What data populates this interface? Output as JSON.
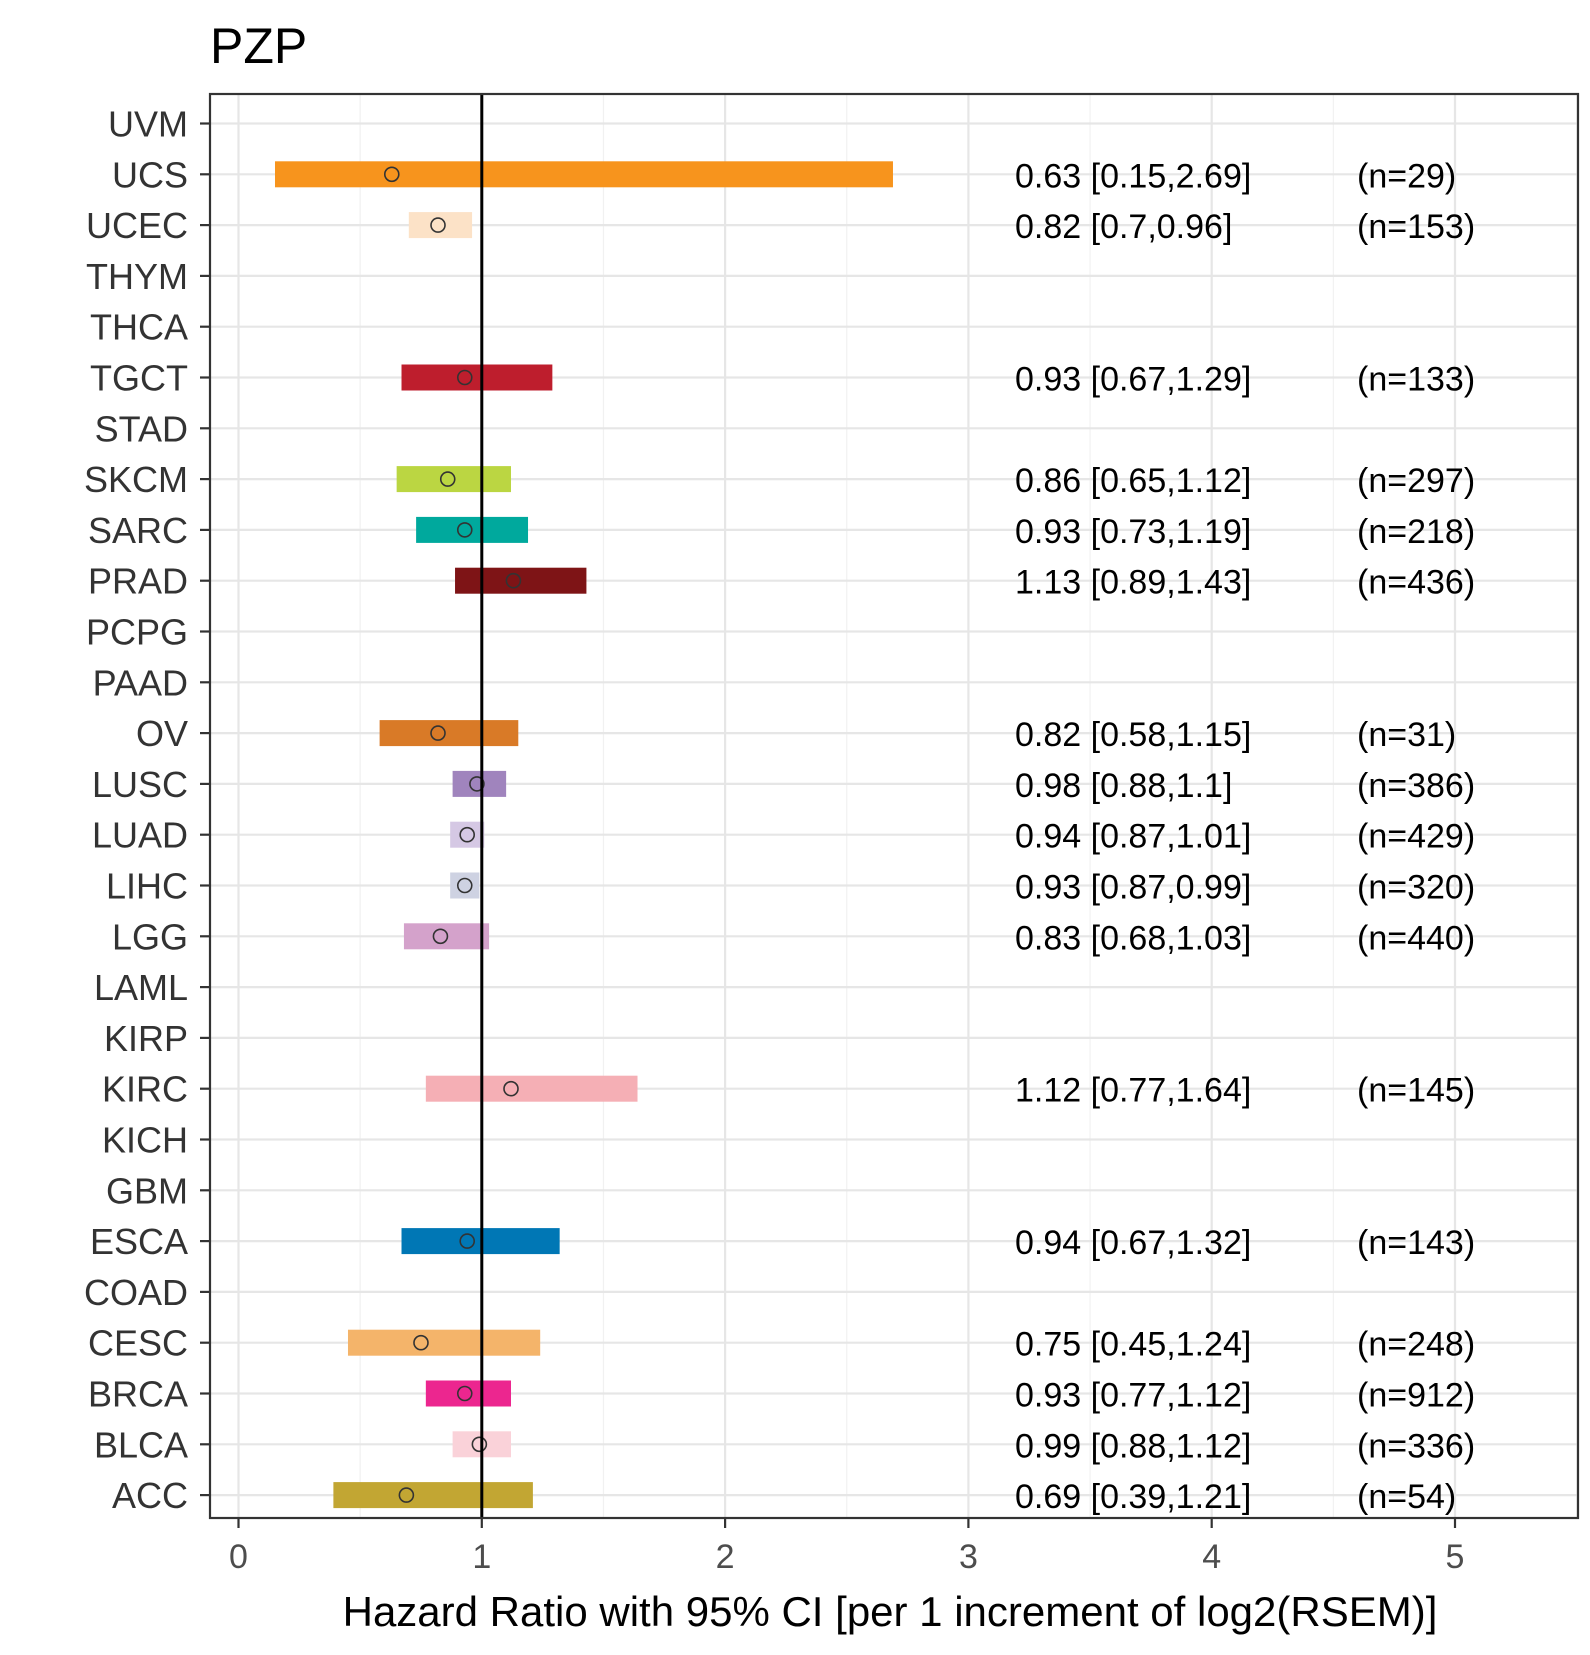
{
  "chart_data": {
    "type": "forest",
    "title": "PZP",
    "xlabel": "Hazard Ratio with 95% CI [per 1 increment of log2(RSEM)]",
    "ylabel": "",
    "xlim": [
      -0.12,
      5.5
    ],
    "x_ticks": [
      "0",
      "1",
      "2",
      "3",
      "4",
      "5"
    ],
    "reference_line": 1,
    "grid": true,
    "rows": [
      {
        "label": "UVM"
      },
      {
        "label": "UCS",
        "hr": 0.63,
        "lo": 0.15,
        "hi": 2.69,
        "text": "0.63 [0.15,2.69]",
        "n": "(n=29)",
        "color": "#F7941D"
      },
      {
        "label": "UCEC",
        "hr": 0.82,
        "lo": 0.7,
        "hi": 0.96,
        "text": "0.82 [0.7,0.96]",
        "n": "(n=153)",
        "color": "#FCE2C7"
      },
      {
        "label": "THYM"
      },
      {
        "label": "THCA"
      },
      {
        "label": "TGCT",
        "hr": 0.93,
        "lo": 0.67,
        "hi": 1.29,
        "text": "0.93 [0.67,1.29]",
        "n": "(n=133)",
        "color": "#BE1E2D"
      },
      {
        "label": "STAD"
      },
      {
        "label": "SKCM",
        "hr": 0.86,
        "lo": 0.65,
        "hi": 1.12,
        "text": "0.86 [0.65,1.12]",
        "n": "(n=297)",
        "color": "#BBD642"
      },
      {
        "label": "SARC",
        "hr": 0.93,
        "lo": 0.73,
        "hi": 1.19,
        "text": "0.93 [0.73,1.19]",
        "n": "(n=218)",
        "color": "#00A99D"
      },
      {
        "label": "PRAD",
        "hr": 1.13,
        "lo": 0.89,
        "hi": 1.43,
        "text": "1.13 [0.89,1.43]",
        "n": "(n=436)",
        "color": "#7E1416"
      },
      {
        "label": "PCPG"
      },
      {
        "label": "PAAD"
      },
      {
        "label": "OV",
        "hr": 0.82,
        "lo": 0.58,
        "hi": 1.15,
        "text": "0.82 [0.58,1.15]",
        "n": "(n=31)",
        "color": "#D97A27"
      },
      {
        "label": "LUSC",
        "hr": 0.98,
        "lo": 0.88,
        "hi": 1.1,
        "text": "0.98 [0.88,1.1]",
        "n": "(n=386)",
        "color": "#A084BD"
      },
      {
        "label": "LUAD",
        "hr": 0.94,
        "lo": 0.87,
        "hi": 1.01,
        "text": "0.94 [0.87,1.01]",
        "n": "(n=429)",
        "color": "#D5C8E4"
      },
      {
        "label": "LIHC",
        "hr": 0.93,
        "lo": 0.87,
        "hi": 0.99,
        "text": "0.93 [0.87,0.99]",
        "n": "(n=320)",
        "color": "#CED2E2"
      },
      {
        "label": "LGG",
        "hr": 0.83,
        "lo": 0.68,
        "hi": 1.03,
        "text": "0.83 [0.68,1.03]",
        "n": "(n=440)",
        "color": "#D4A2CB"
      },
      {
        "label": "LAML"
      },
      {
        "label": "KIRP"
      },
      {
        "label": "KIRC",
        "hr": 1.12,
        "lo": 0.77,
        "hi": 1.64,
        "text": "1.12 [0.77,1.64]",
        "n": "(n=145)",
        "color": "#F5AFB5"
      },
      {
        "label": "KICH"
      },
      {
        "label": "GBM"
      },
      {
        "label": "ESCA",
        "hr": 0.94,
        "lo": 0.67,
        "hi": 1.32,
        "text": "0.94 [0.67,1.32]",
        "n": "(n=143)",
        "color": "#0077B5"
      },
      {
        "label": "COAD"
      },
      {
        "label": "CESC",
        "hr": 0.75,
        "lo": 0.45,
        "hi": 1.24,
        "text": "0.75 [0.45,1.24]",
        "n": "(n=248)",
        "color": "#F4B46A"
      },
      {
        "label": "BRCA",
        "hr": 0.93,
        "lo": 0.77,
        "hi": 1.12,
        "text": "0.93 [0.77,1.12]",
        "n": "(n=912)",
        "color": "#EC268F"
      },
      {
        "label": "BLCA",
        "hr": 0.99,
        "lo": 0.88,
        "hi": 1.12,
        "text": "0.99 [0.88,1.12]",
        "n": "(n=336)",
        "color": "#FAD2D9"
      },
      {
        "label": "ACC",
        "hr": 0.69,
        "lo": 0.39,
        "hi": 1.21,
        "text": "0.69 [0.39,1.21]",
        "n": "(n=54)",
        "color": "#C2A633"
      }
    ]
  }
}
